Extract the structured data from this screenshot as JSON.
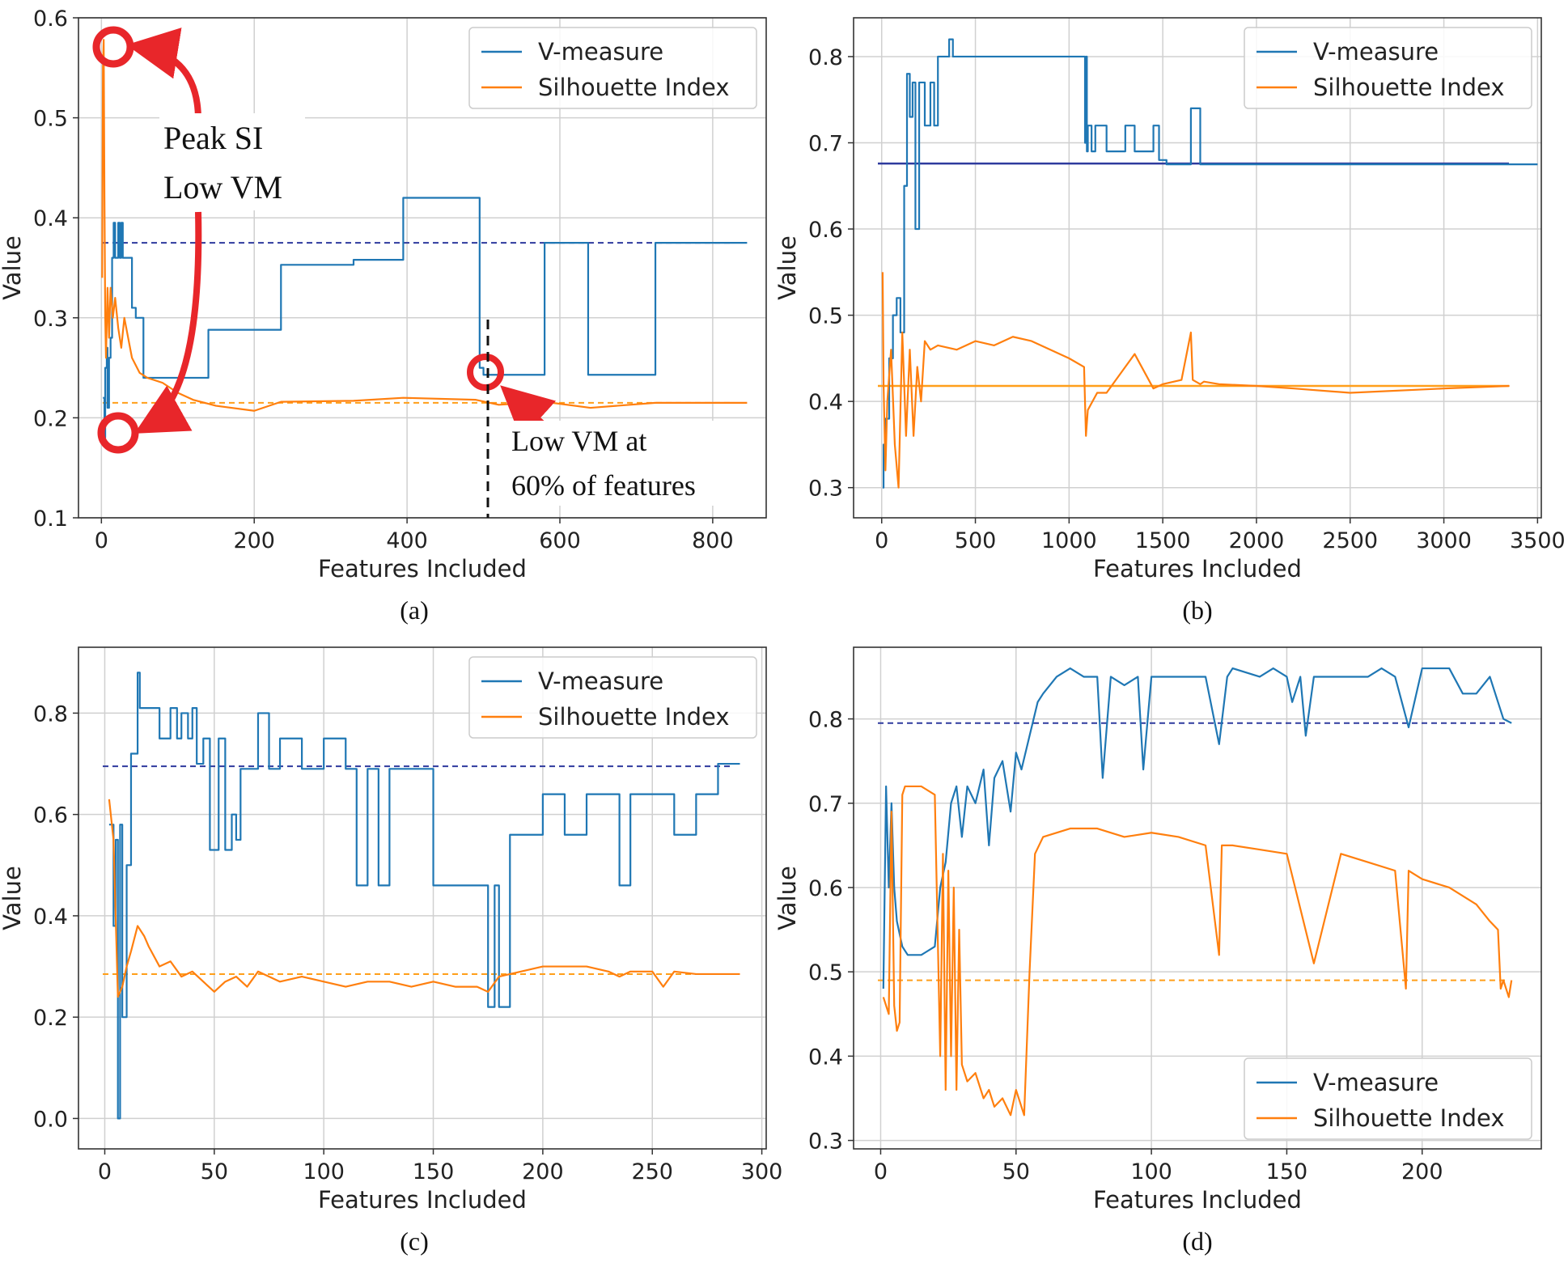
{
  "colors": {
    "vm": "#1f77b4",
    "si": "#ff7f0e",
    "ref_vm": "#2e3a9e",
    "ref_si": "#ff9f1a",
    "annot": "#e8262a"
  },
  "chart_data": [
    {
      "panel": "a",
      "caption": "(a)",
      "type": "line",
      "xlabel": "Features Included",
      "ylabel": "Value",
      "xlim": [
        -30,
        870
      ],
      "ylim": [
        0.1,
        0.6
      ],
      "xticks": [
        0,
        200,
        400,
        600,
        800
      ],
      "yticks": [
        0.1,
        0.2,
        0.3,
        0.4,
        0.5,
        0.6
      ],
      "xtick_labels": [
        "0",
        "200",
        "400",
        "600",
        "800"
      ],
      "ytick_labels": [
        "0.1",
        "0.2",
        "0.3",
        "0.4",
        "0.5",
        "0.6"
      ],
      "legend": {
        "entries": [
          "V-measure",
          "Silhouette Index"
        ],
        "loc": "upper right"
      },
      "series": [
        {
          "name": "V-measure",
          "x": [
            2,
            4,
            5,
            7,
            8,
            10,
            12,
            14,
            16,
            18,
            20,
            22,
            24,
            26,
            28,
            30,
            40,
            45,
            55,
            140,
            235,
            330,
            395,
            495,
            500,
            580,
            637,
            725,
            845
          ],
          "y": [
            0.22,
            0.18,
            0.25,
            0.27,
            0.21,
            0.26,
            0.28,
            0.36,
            0.395,
            0.36,
            0.36,
            0.395,
            0.36,
            0.395,
            0.36,
            0.36,
            0.31,
            0.3,
            0.24,
            0.288,
            0.353,
            0.358,
            0.42,
            0.25,
            0.243,
            0.375,
            0.243,
            0.375,
            0.375
          ],
          "step": true
        },
        {
          "name": "Silhouette Index",
          "x": [
            1,
            2,
            3,
            4,
            5,
            6,
            8,
            10,
            12,
            15,
            18,
            22,
            26,
            30,
            40,
            50,
            60,
            80,
            100,
            120,
            150,
            200,
            235,
            330,
            395,
            490,
            520,
            580,
            640,
            725,
            845
          ],
          "y": [
            0.34,
            0.55,
            0.578,
            0.42,
            0.3,
            0.26,
            0.33,
            0.28,
            0.33,
            0.3,
            0.32,
            0.29,
            0.27,
            0.3,
            0.26,
            0.245,
            0.24,
            0.235,
            0.225,
            0.218,
            0.212,
            0.207,
            0.216,
            0.217,
            0.22,
            0.218,
            0.213,
            0.216,
            0.21,
            0.215,
            0.215
          ]
        }
      ],
      "hlines": [
        {
          "series": "V-measure",
          "y": 0.375,
          "style": "dashed"
        },
        {
          "series": "Silhouette Index",
          "y": 0.215,
          "style": "dashed"
        }
      ],
      "annotations": {
        "peak_si": "Peak SI",
        "low_vm": "Low VM",
        "low_vm_60_line1": "Low VM at",
        "low_vm_60_line2": "60% of features"
      }
    },
    {
      "panel": "b",
      "caption": "(b)",
      "type": "line",
      "xlabel": "Features Included",
      "ylabel": "Value",
      "xlim": [
        -150,
        3520
      ],
      "ylim": [
        0.265,
        0.845
      ],
      "xticks": [
        0,
        500,
        1000,
        1500,
        2000,
        2500,
        3000,
        3500
      ],
      "yticks": [
        0.3,
        0.4,
        0.5,
        0.6,
        0.7,
        0.8
      ],
      "xtick_labels": [
        "0",
        "500",
        "1000",
        "1500",
        "2000",
        "2500",
        "3000",
        "3500"
      ],
      "ytick_labels": [
        "0.3",
        "0.4",
        "0.5",
        "0.6",
        "0.7",
        "0.8"
      ],
      "legend": {
        "entries": [
          "V-measure",
          "Silhouette Index"
        ],
        "loc": "upper right"
      },
      "series": [
        {
          "name": "V-measure",
          "x": [
            5,
            10,
            20,
            40,
            60,
            80,
            100,
            120,
            135,
            150,
            165,
            180,
            200,
            230,
            260,
            280,
            300,
            330,
            360,
            380,
            420,
            1080,
            1085,
            1090,
            1095,
            1100,
            1120,
            1140,
            1200,
            1300,
            1350,
            1450,
            1480,
            1520,
            1600,
            1650,
            1700,
            3500
          ],
          "y": [
            0.3,
            0.35,
            0.38,
            0.45,
            0.5,
            0.52,
            0.48,
            0.65,
            0.78,
            0.73,
            0.77,
            0.6,
            0.77,
            0.72,
            0.77,
            0.72,
            0.8,
            0.8,
            0.82,
            0.8,
            0.8,
            0.8,
            0.7,
            0.8,
            0.69,
            0.72,
            0.69,
            0.72,
            0.69,
            0.72,
            0.69,
            0.72,
            0.68,
            0.675,
            0.675,
            0.74,
            0.675,
            0.675
          ],
          "step": true
        },
        {
          "name": "Silhouette Index",
          "x": [
            5,
            10,
            20,
            30,
            50,
            70,
            90,
            110,
            130,
            150,
            170,
            190,
            210,
            230,
            260,
            300,
            400,
            500,
            600,
            700,
            800,
            900,
            1000,
            1080,
            1090,
            1100,
            1150,
            1200,
            1300,
            1350,
            1450,
            1500,
            1600,
            1650,
            1660,
            1700,
            1720,
            1800,
            2000,
            2200,
            2500,
            3000,
            3350
          ],
          "y": [
            0.55,
            0.42,
            0.32,
            0.4,
            0.46,
            0.35,
            0.3,
            0.48,
            0.36,
            0.46,
            0.36,
            0.44,
            0.4,
            0.47,
            0.46,
            0.465,
            0.46,
            0.47,
            0.465,
            0.475,
            0.47,
            0.46,
            0.45,
            0.44,
            0.36,
            0.39,
            0.41,
            0.41,
            0.44,
            0.455,
            0.415,
            0.42,
            0.425,
            0.48,
            0.425,
            0.42,
            0.423,
            0.42,
            0.418,
            0.415,
            0.41,
            0.415,
            0.418
          ]
        }
      ],
      "hlines": [
        {
          "series": "V-measure",
          "y": 0.676,
          "style": "solid"
        },
        {
          "series": "Silhouette Index",
          "y": 0.418,
          "style": "solid"
        }
      ]
    },
    {
      "panel": "c",
      "caption": "(c)",
      "type": "line",
      "xlabel": "Features Included",
      "ylabel": "Value",
      "xlim": [
        -12,
        302
      ],
      "ylim": [
        -0.06,
        0.93
      ],
      "xticks": [
        0,
        50,
        100,
        150,
        200,
        250,
        300
      ],
      "yticks": [
        0.0,
        0.2,
        0.4,
        0.6,
        0.8
      ],
      "xtick_labels": [
        "0",
        "50",
        "100",
        "150",
        "200",
        "250",
        "300"
      ],
      "ytick_labels": [
        "0.0",
        "0.2",
        "0.4",
        "0.6",
        "0.8"
      ],
      "legend": {
        "entries": [
          "V-measure",
          "Silhouette Index"
        ],
        "loc": "upper right"
      },
      "series": [
        {
          "name": "V-measure",
          "x": [
            2,
            4,
            5,
            6,
            7,
            8,
            10,
            12,
            15,
            16,
            18,
            25,
            30,
            33,
            35,
            38,
            40,
            42,
            45,
            48,
            50,
            52,
            55,
            58,
            60,
            62,
            65,
            70,
            75,
            80,
            90,
            100,
            110,
            115,
            120,
            125,
            130,
            140,
            150,
            160,
            170,
            175,
            178,
            180,
            185,
            190,
            200,
            210,
            220,
            235,
            240,
            250,
            260,
            270,
            280,
            290
          ],
          "y": [
            0.58,
            0.38,
            0.55,
            0.0,
            0.58,
            0.2,
            0.5,
            0.72,
            0.88,
            0.81,
            0.81,
            0.75,
            0.81,
            0.75,
            0.8,
            0.75,
            0.81,
            0.7,
            0.75,
            0.53,
            0.53,
            0.75,
            0.53,
            0.6,
            0.55,
            0.69,
            0.69,
            0.8,
            0.69,
            0.75,
            0.69,
            0.75,
            0.69,
            0.46,
            0.69,
            0.46,
            0.69,
            0.69,
            0.46,
            0.46,
            0.46,
            0.22,
            0.46,
            0.22,
            0.56,
            0.56,
            0.64,
            0.56,
            0.64,
            0.46,
            0.64,
            0.64,
            0.56,
            0.64,
            0.7,
            0.7
          ],
          "step": true
        },
        {
          "name": "Silhouette Index",
          "x": [
            2,
            4,
            6,
            8,
            10,
            12,
            15,
            18,
            20,
            25,
            30,
            35,
            40,
            45,
            50,
            55,
            60,
            65,
            70,
            80,
            90,
            100,
            110,
            120,
            130,
            140,
            150,
            160,
            170,
            175,
            180,
            190,
            200,
            210,
            220,
            230,
            235,
            240,
            250,
            255,
            260,
            270,
            280,
            290
          ],
          "y": [
            0.63,
            0.55,
            0.24,
            0.26,
            0.3,
            0.33,
            0.38,
            0.36,
            0.34,
            0.3,
            0.31,
            0.28,
            0.29,
            0.27,
            0.25,
            0.27,
            0.28,
            0.26,
            0.29,
            0.27,
            0.28,
            0.27,
            0.26,
            0.27,
            0.27,
            0.26,
            0.27,
            0.26,
            0.26,
            0.25,
            0.28,
            0.29,
            0.3,
            0.3,
            0.3,
            0.29,
            0.28,
            0.29,
            0.29,
            0.26,
            0.29,
            0.285,
            0.285,
            0.285
          ]
        }
      ],
      "hlines": [
        {
          "series": "V-measure",
          "y": 0.695,
          "style": "dashed"
        },
        {
          "series": "Silhouette Index",
          "y": 0.285,
          "style": "dashed"
        }
      ]
    },
    {
      "panel": "d",
      "caption": "(d)",
      "type": "line",
      "xlabel": "Features Included",
      "ylabel": "Value",
      "xlim": [
        -10,
        244
      ],
      "ylim": [
        0.29,
        0.885
      ],
      "xticks": [
        0,
        50,
        100,
        150,
        200
      ],
      "yticks": [
        0.3,
        0.4,
        0.5,
        0.6,
        0.7,
        0.8
      ],
      "xtick_labels": [
        "0",
        "50",
        "100",
        "150",
        "200"
      ],
      "ytick_labels": [
        "0.3",
        "0.4",
        "0.5",
        "0.6",
        "0.7",
        "0.8"
      ],
      "legend": {
        "entries": [
          "V-measure",
          "Silhouette Index"
        ],
        "loc": "lower right"
      },
      "series": [
        {
          "name": "V-measure",
          "x": [
            1,
            2,
            3,
            4,
            5,
            6,
            8,
            10,
            15,
            20,
            22,
            24,
            26,
            28,
            30,
            32,
            35,
            38,
            40,
            42,
            45,
            48,
            50,
            52,
            55,
            58,
            60,
            65,
            70,
            75,
            80,
            82,
            85,
            90,
            95,
            97,
            100,
            110,
            115,
            120,
            125,
            128,
            130,
            140,
            145,
            150,
            152,
            155,
            157,
            160,
            170,
            180,
            185,
            190,
            195,
            200,
            205,
            210,
            215,
            220,
            225,
            230,
            233
          ],
          "y": [
            0.48,
            0.72,
            0.6,
            0.7,
            0.6,
            0.56,
            0.53,
            0.52,
            0.52,
            0.53,
            0.6,
            0.63,
            0.7,
            0.72,
            0.66,
            0.72,
            0.7,
            0.74,
            0.65,
            0.73,
            0.75,
            0.69,
            0.76,
            0.74,
            0.78,
            0.82,
            0.83,
            0.85,
            0.86,
            0.85,
            0.85,
            0.73,
            0.85,
            0.84,
            0.85,
            0.74,
            0.85,
            0.85,
            0.85,
            0.85,
            0.77,
            0.85,
            0.86,
            0.85,
            0.86,
            0.85,
            0.82,
            0.85,
            0.78,
            0.85,
            0.85,
            0.85,
            0.86,
            0.85,
            0.79,
            0.86,
            0.86,
            0.86,
            0.83,
            0.83,
            0.85,
            0.8,
            0.795
          ]
        },
        {
          "name": "Silhouette Index",
          "x": [
            1,
            2,
            3,
            4,
            5,
            6,
            7,
            8,
            9,
            10,
            15,
            20,
            22,
            23,
            24,
            25,
            26,
            27,
            28,
            29,
            30,
            32,
            35,
            38,
            40,
            42,
            45,
            48,
            50,
            52,
            53,
            55,
            57,
            60,
            70,
            80,
            90,
            100,
            110,
            120,
            125,
            126,
            130,
            140,
            150,
            160,
            170,
            180,
            190,
            194,
            195,
            200,
            210,
            220,
            225,
            228,
            229,
            230,
            232,
            233
          ],
          "y": [
            0.47,
            0.46,
            0.45,
            0.69,
            0.46,
            0.43,
            0.44,
            0.71,
            0.72,
            0.72,
            0.72,
            0.71,
            0.4,
            0.64,
            0.36,
            0.62,
            0.4,
            0.6,
            0.36,
            0.55,
            0.39,
            0.37,
            0.38,
            0.35,
            0.36,
            0.34,
            0.35,
            0.33,
            0.36,
            0.34,
            0.33,
            0.5,
            0.64,
            0.66,
            0.67,
            0.67,
            0.66,
            0.665,
            0.66,
            0.65,
            0.52,
            0.65,
            0.65,
            0.645,
            0.64,
            0.51,
            0.64,
            0.63,
            0.62,
            0.48,
            0.62,
            0.61,
            0.6,
            0.58,
            0.56,
            0.55,
            0.48,
            0.49,
            0.47,
            0.49
          ]
        }
      ],
      "hlines": [
        {
          "series": "V-measure",
          "y": 0.795,
          "style": "dashed"
        },
        {
          "series": "Silhouette Index",
          "y": 0.49,
          "style": "dashed"
        }
      ]
    }
  ]
}
